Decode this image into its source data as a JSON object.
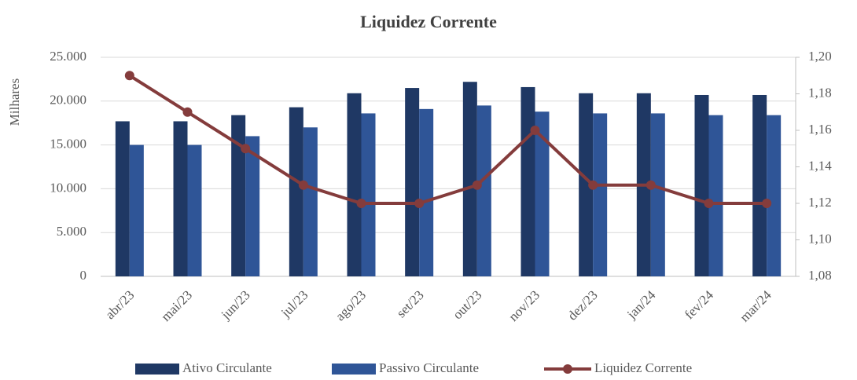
{
  "chart_data": {
    "type": "bar_line",
    "title": "Liquidez Corrente",
    "ylabel": "Milhares",
    "categories": [
      "abr/23",
      "mai/23",
      "jun/23",
      "jul/23",
      "ago/23",
      "set/23",
      "out/23",
      "nov/23",
      "dez/23",
      "jan/24",
      "fev/24",
      "mar/24"
    ],
    "series": [
      {
        "name": "Ativo Circulante",
        "color": "#1f3864",
        "kind": "bar",
        "values": [
          17700,
          17700,
          18400,
          19300,
          20900,
          21500,
          22200,
          21600,
          20900,
          20900,
          20700,
          20700
        ]
      },
      {
        "name": "Passivo Circulante",
        "color": "#2f5597",
        "kind": "bar",
        "values": [
          15000,
          15000,
          16000,
          17000,
          18600,
          19100,
          19500,
          18800,
          18600,
          18600,
          18400,
          18400
        ]
      },
      {
        "name": "Liquidez Corrente",
        "color": "#843c3c",
        "kind": "line",
        "axis": "y2",
        "values": [
          1.19,
          1.17,
          1.15,
          1.13,
          1.12,
          1.12,
          1.13,
          1.16,
          1.13,
          1.13,
          1.12,
          1.12
        ]
      }
    ],
    "ylim": [
      0,
      25000
    ],
    "yticks": [
      0,
      {
        "value": 5000,
        "label": "5.000"
      },
      {
        "value": 10000,
        "label": "10.000"
      },
      {
        "value": 15000,
        "label": "15.000"
      },
      {
        "value": 20000,
        "label": "20.000"
      },
      {
        "value": 25000,
        "label": "25.000"
      }
    ],
    "y2lim": [
      1.08,
      1.2
    ],
    "y2ticks": [
      {
        "value": 1.08,
        "label": "1,08"
      },
      {
        "value": 1.1,
        "label": "1,10"
      },
      {
        "value": 1.12,
        "label": "1,12"
      },
      {
        "value": 1.14,
        "label": "1,14"
      },
      {
        "value": 1.16,
        "label": "1,16"
      },
      {
        "value": 1.18,
        "label": "1,18"
      },
      {
        "value": 1.2,
        "label": "1,20"
      }
    ],
    "grid": true,
    "legend": "bottom"
  }
}
